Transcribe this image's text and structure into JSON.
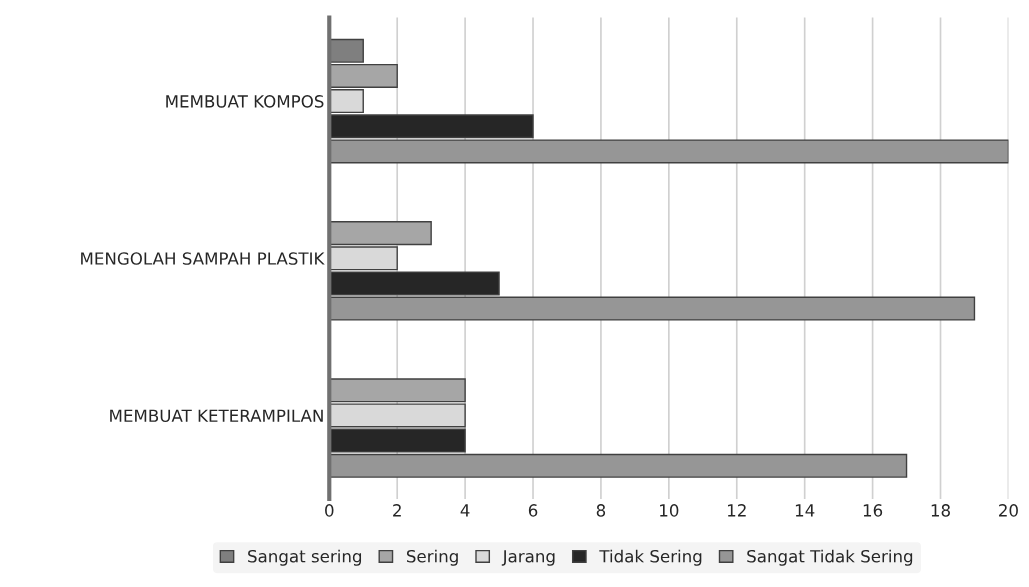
{
  "chart_data": {
    "type": "bar",
    "orientation": "horizontal",
    "categories": [
      "MEMBUAT KOMPOS",
      "MENGOLAH SAMPAH PLASTIK",
      "MEMBUAT KETERAMPILAN"
    ],
    "series": [
      {
        "name": "Sangat sering",
        "color": "#7f7f7f",
        "values": [
          1,
          0,
          0
        ]
      },
      {
        "name": "Sering",
        "color": "#a6a6a6",
        "values": [
          2,
          3,
          4
        ]
      },
      {
        "name": "Jarang",
        "color": "#d9d9d9",
        "values": [
          1,
          2,
          4
        ]
      },
      {
        "name": "Tidak Sering",
        "color": "#262626",
        "values": [
          6,
          5,
          4
        ]
      },
      {
        "name": "Sangat Tidak Sering",
        "color": "#969696",
        "values": [
          20,
          19,
          17
        ]
      }
    ],
    "xlim": [
      0,
      20
    ],
    "xticks": [
      0,
      2,
      4,
      6,
      8,
      10,
      12,
      14,
      16,
      18,
      20
    ],
    "grid": "x",
    "legend": "bottom"
  }
}
